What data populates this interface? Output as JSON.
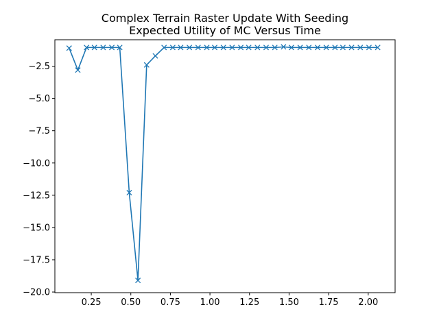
{
  "chart_data": {
    "type": "line",
    "title": "Complex Terrain Raster Update With Seeding",
    "subtitle": "Expected Utility of MC Versus Time",
    "xlabel": "",
    "ylabel": "",
    "xlim": [
      0.02,
      2.17
    ],
    "ylim": [
      -20.05,
      -0.45
    ],
    "xticks": [
      0.25,
      0.5,
      0.75,
      1.0,
      1.25,
      1.5,
      1.75,
      2.0
    ],
    "xtick_labels": [
      "0.25",
      "0.50",
      "0.75",
      "1.00",
      "1.25",
      "1.50",
      "1.75",
      "2.00"
    ],
    "yticks": [
      -2.5,
      -5.0,
      -7.5,
      -10.0,
      -12.5,
      -15.0,
      -17.5,
      -20.0
    ],
    "ytick_labels": [
      "−2.5",
      "−5.0",
      "−7.5",
      "−10.0",
      "−12.5",
      "−15.0",
      "−17.5",
      "−20.0"
    ],
    "grid": false,
    "marker": "x",
    "series": [
      {
        "color": "#1f77b4",
        "x": [
          0.11,
          0.165,
          0.22,
          0.27,
          0.325,
          0.38,
          0.43,
          0.49,
          0.545,
          0.6,
          0.655,
          0.71,
          0.765,
          0.815,
          0.87,
          0.925,
          0.98,
          1.03,
          1.085,
          1.14,
          1.195,
          1.245,
          1.3,
          1.355,
          1.41,
          1.465,
          1.515,
          1.57,
          1.625,
          1.68,
          1.735,
          1.79,
          1.84,
          1.895,
          1.95,
          2.005,
          2.06
        ],
        "y": [
          -1.1,
          -2.8,
          -1.05,
          -1.05,
          -1.05,
          -1.05,
          -1.05,
          -12.3,
          -19.1,
          -2.4,
          -1.7,
          -1.05,
          -1.05,
          -1.05,
          -1.05,
          -1.05,
          -1.05,
          -1.05,
          -1.05,
          -1.05,
          -1.05,
          -1.05,
          -1.05,
          -1.05,
          -1.05,
          -1.0,
          -1.05,
          -1.05,
          -1.05,
          -1.05,
          -1.05,
          -1.05,
          -1.05,
          -1.05,
          -1.05,
          -1.05,
          -1.05
        ]
      }
    ]
  }
}
